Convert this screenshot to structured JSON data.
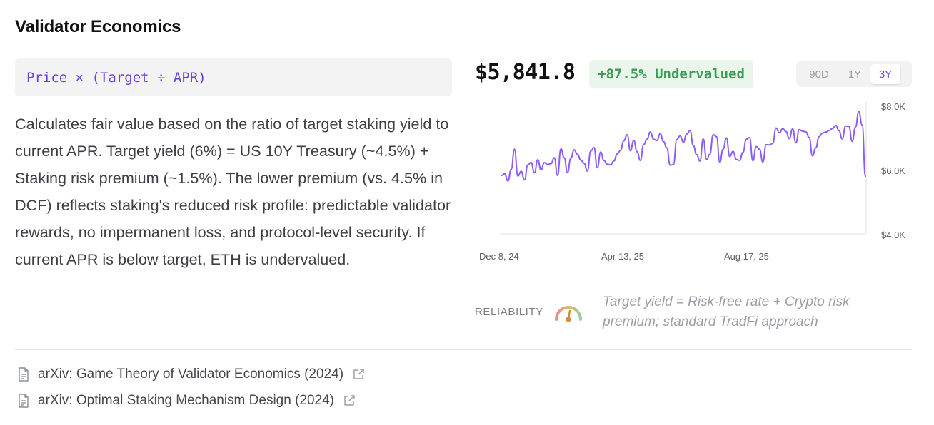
{
  "section": {
    "title": "Validator Economics"
  },
  "formula": {
    "text": "Price × (Target ÷ APR)"
  },
  "description": {
    "text": "Calculates fair value based on the ratio of target staking yield to current APR. Target yield (6%) = US 10Y Treasury (~4.5%) + Staking risk premium (~1.5%). The lower premium (vs. 4.5% in DCF) reflects staking's reduced risk profile: predictable validator rewards, no impermanent loss, and protocol-level security. If current APR is below target, ETH is undervalued."
  },
  "valuation": {
    "price": "$5,841.8",
    "badge": "+87.5% Undervalued",
    "badge_color": "#3d9a57"
  },
  "range": {
    "options": [
      "90D",
      "1Y",
      "3Y"
    ],
    "selected": "3Y"
  },
  "reliability": {
    "label": "RELIABILITY",
    "level": 0.55,
    "note": "Target yield = Risk-free rate + Crypto risk premium; standard TradFi approach"
  },
  "references": [
    {
      "text": "arXiv: Game Theory of Validator Economics (2024)",
      "icon": "document-icon",
      "link_icon": "external-link-icon"
    },
    {
      "text": "arXiv: Optimal Staking Mechanism Design (2024)",
      "icon": "document-icon",
      "link_icon": "external-link-icon"
    }
  ],
  "colors": {
    "accent": "#6a3fd4",
    "line": "#8b5cf6",
    "positive": "#3d9a57"
  },
  "chart_data": {
    "type": "line",
    "title": "",
    "xlabel": "",
    "ylabel": "",
    "x_tick_labels": [
      "Dec 8, 24",
      "Apr 13, 25",
      "Aug 17, 25"
    ],
    "y_tick_labels": [
      "$8.0K",
      "$6.0K",
      "$4.0K"
    ],
    "y_ticks": [
      8000,
      6000,
      4000
    ],
    "ylim": [
      4000,
      8000
    ],
    "grid": false,
    "series": [
      {
        "values": [
          5820,
          5870,
          5650,
          6010,
          6640,
          5800,
          5950,
          5680,
          6150,
          6230,
          5900,
          6310,
          6000,
          6220,
          6160,
          6190,
          6370,
          5820,
          6650,
          6370,
          5910,
          6360,
          6620,
          6480,
          6300,
          6200,
          5960,
          6580,
          6690,
          6060,
          6550,
          6290,
          6170,
          6150,
          6270,
          6490,
          6600,
          6900,
          7090,
          6590,
          6910,
          6560,
          6290,
          6780,
          6950,
          7170,
          6950,
          6910,
          7120,
          6870,
          6680,
          6140,
          6160,
          6940,
          7050,
          6860,
          7110,
          7220,
          6750,
          6470,
          6270,
          6960,
          6320,
          6480,
          7090,
          7030,
          6230,
          6640,
          6990,
          6410,
          6570,
          6320,
          6290,
          6540,
          6950,
          7000,
          6280,
          6720,
          6640,
          6240,
          6780,
          6770,
          6820,
          7300,
          7150,
          7280,
          7190,
          6970,
          7270,
          6840,
          7250,
          7200,
          7180,
          7000,
          6430,
          6680,
          7030,
          7140,
          7170,
          7220,
          7280,
          7380,
          7220,
          6960,
          7360,
          7350,
          6880,
          7330,
          7820,
          7390,
          5800
        ]
      }
    ]
  }
}
